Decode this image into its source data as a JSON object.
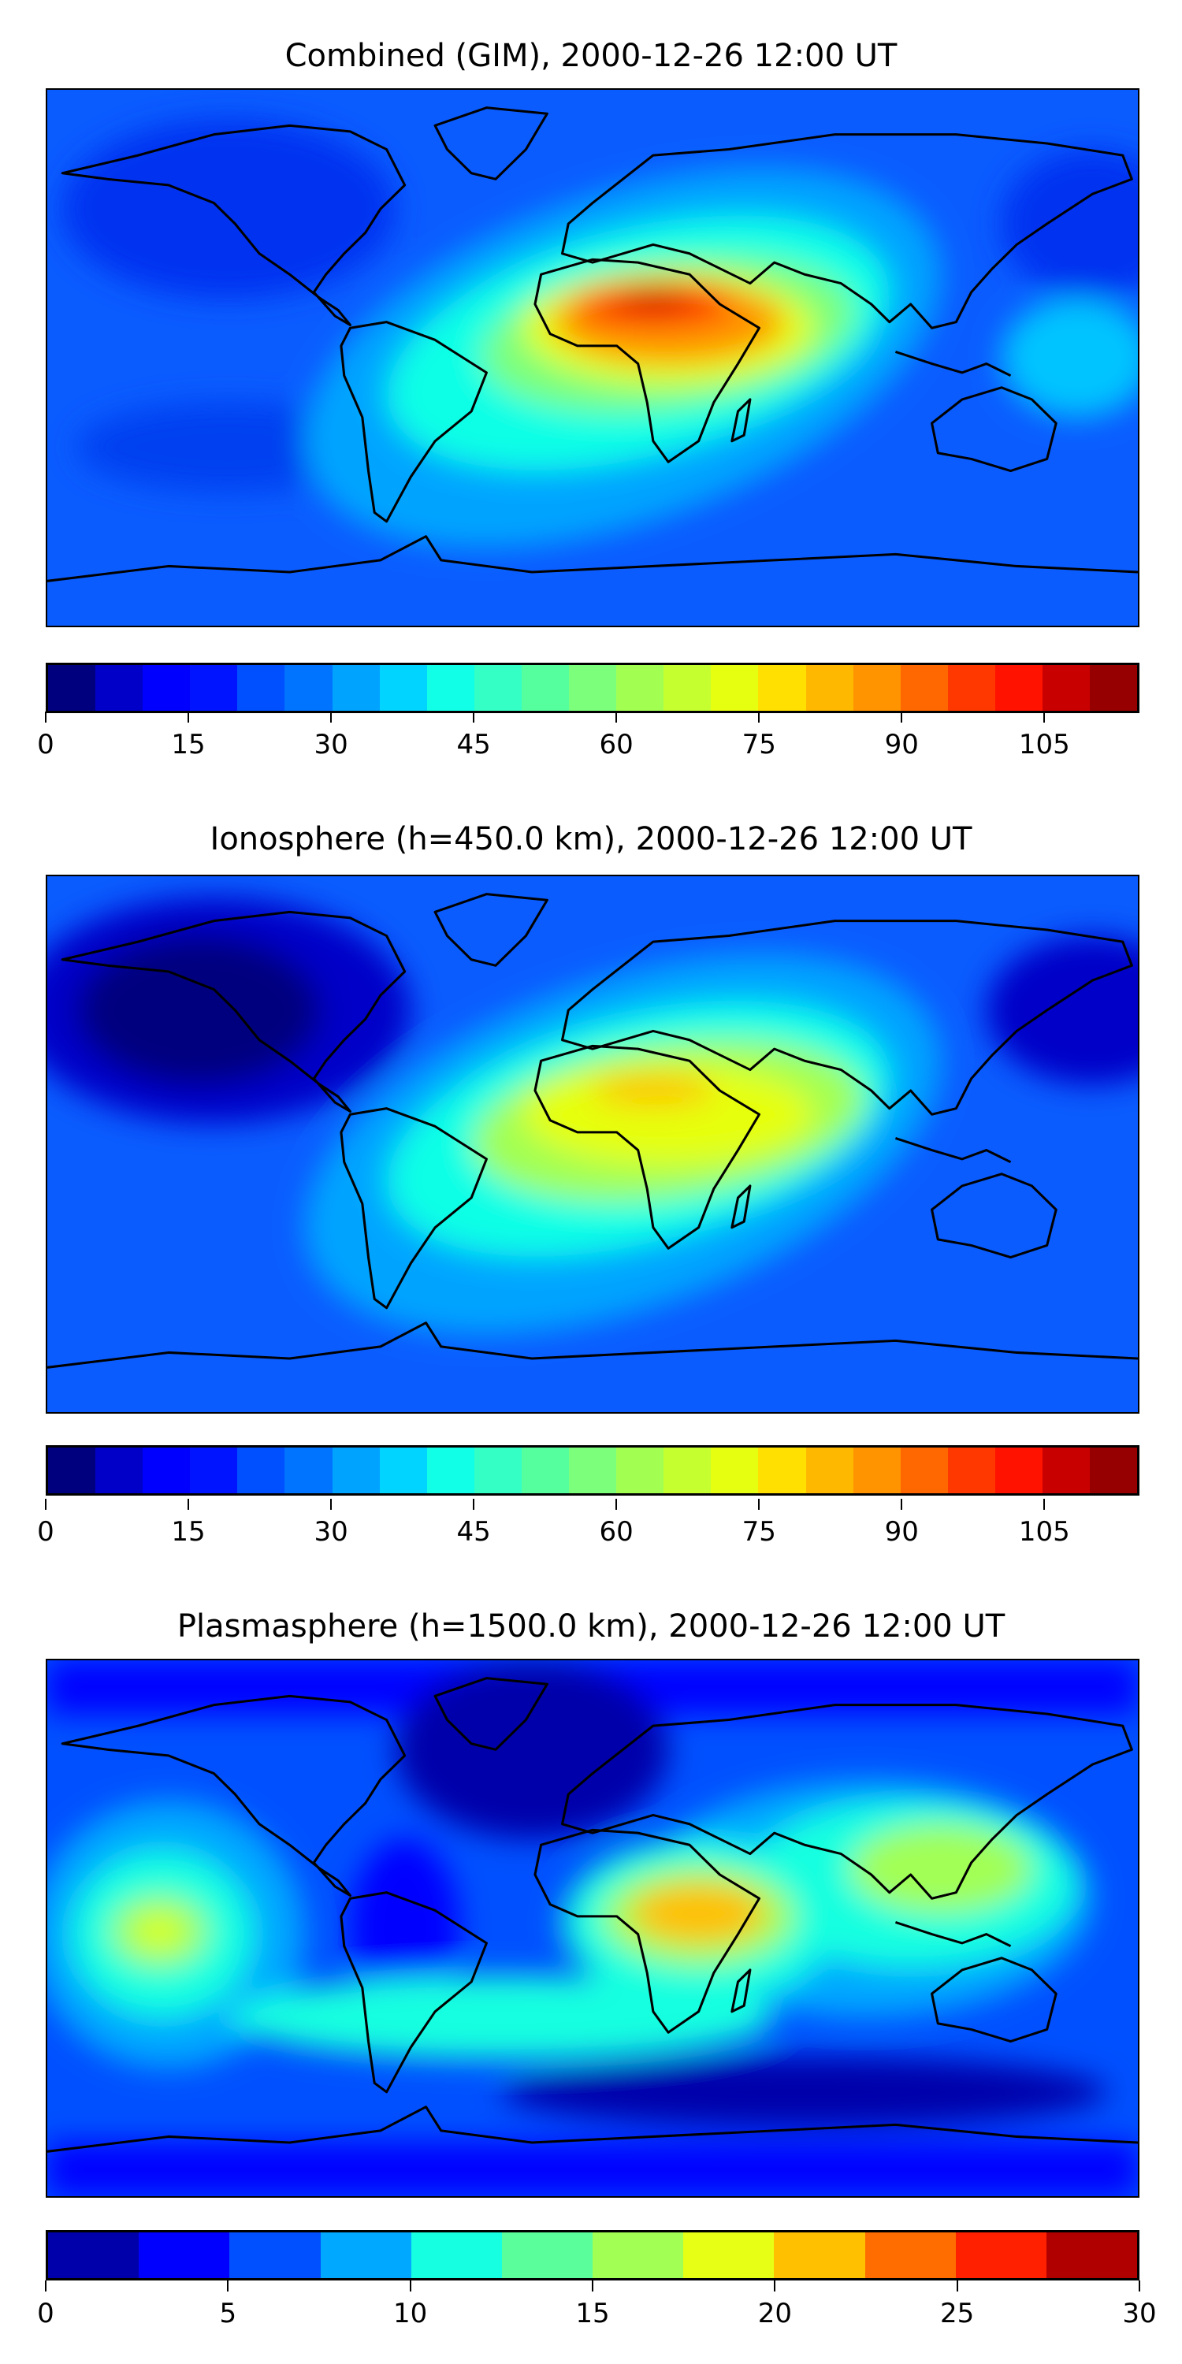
{
  "chart_data": [
    {
      "type": "heatmap",
      "title": "Combined (GIM), 2000-12-26 12:00 UT",
      "colorbar": {
        "range": [
          0,
          115
        ],
        "step": 5,
        "ticks": [
          0,
          15,
          30,
          45,
          60,
          75,
          90,
          105
        ],
        "tick_labels": [
          "0",
          "15",
          "30",
          "45",
          "60",
          "75",
          "90",
          "105"
        ],
        "colors": [
          "#00007f",
          "#0000c8",
          "#0000ff",
          "#0014ff",
          "#0050ff",
          "#0074ff",
          "#00a4ff",
          "#00d4ff",
          "#10ffe6",
          "#34ffc4",
          "#56ff9e",
          "#7cff7a",
          "#a2ff52",
          "#c6ff30",
          "#e6ff10",
          "#ffe000",
          "#ffb800",
          "#ff9400",
          "#ff6800",
          "#ff3800",
          "#ff1200",
          "#c80000",
          "#960000"
        ]
      }
    },
    {
      "type": "heatmap",
      "title": "Ionosphere  (h=450.0 km), 2000-12-26 12:00 UT",
      "colorbar": {
        "range": [
          0,
          115
        ],
        "step": 5,
        "ticks": [
          0,
          15,
          30,
          45,
          60,
          75,
          90,
          105
        ],
        "tick_labels": [
          "0",
          "15",
          "30",
          "45",
          "60",
          "75",
          "90",
          "105"
        ],
        "colors": [
          "#00007f",
          "#0000c8",
          "#0000ff",
          "#0014ff",
          "#0050ff",
          "#0074ff",
          "#00a4ff",
          "#00d4ff",
          "#10ffe6",
          "#34ffc4",
          "#56ff9e",
          "#7cff7a",
          "#a2ff52",
          "#c6ff30",
          "#e6ff10",
          "#ffe000",
          "#ffb800",
          "#ff9400",
          "#ff6800",
          "#ff3800",
          "#ff1200",
          "#c80000",
          "#960000"
        ]
      }
    },
    {
      "type": "heatmap",
      "title": "Plasmasphere (h=1500.0 km), 2000-12-26 12:00 UT",
      "colorbar": {
        "range": [
          0,
          30
        ],
        "step": 2.5,
        "ticks": [
          0,
          5,
          10,
          15,
          20,
          25,
          30
        ],
        "tick_labels": [
          "0",
          "5",
          "10",
          "15",
          "20",
          "25",
          "30"
        ],
        "colors": [
          "#0000aa",
          "#0000ff",
          "#0050ff",
          "#00a8ff",
          "#16ffe0",
          "#5aff9c",
          "#a2ff54",
          "#e6ff14",
          "#ffc000",
          "#ff6c00",
          "#ff2000",
          "#b00000"
        ]
      }
    }
  ]
}
